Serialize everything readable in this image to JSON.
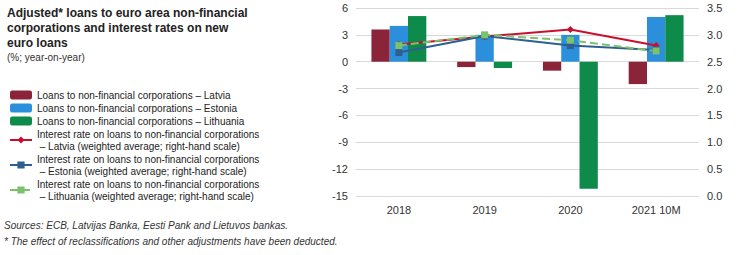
{
  "chart_data": {
    "type": "bar",
    "title": "Adjusted* loans to euro area non-financial corporations and interest rates on new euro loans",
    "subtitle": "(%; year-on-year)",
    "notes": [
      "Sources: ECB, Latvijas Banka, Eesti Pank and Lietuvos bankas.",
      "* The effect of reclassifications and other adjustments have been deducted."
    ],
    "categories": [
      "2018",
      "2019",
      "2020",
      "2021 10M"
    ],
    "series": [
      {
        "name": "Loans to non-financial corporations – Latvia",
        "type": "bar",
        "color": "#8c2439",
        "values": [
          3.6,
          -0.6,
          -1.0,
          -2.5
        ]
      },
      {
        "name": "Loans to non-financial corporations – Estonia",
        "type": "bar",
        "color": "#2b8fdb",
        "values": [
          4.0,
          3.0,
          3.0,
          5.0
        ]
      },
      {
        "name": "Loans to non-financial corporations – Lithuania",
        "type": "bar",
        "color": "#0e8a4b",
        "values": [
          5.1,
          -0.7,
          -14.2,
          5.2
        ]
      },
      {
        "name": "Interest rate on loans to non-financial corporations – Latvia (weighted average; right-hand scale)",
        "type": "line",
        "axis": "y2",
        "color": "#c8102e",
        "marker": "diamond",
        "line_style": "solid",
        "values": [
          2.82,
          2.97,
          3.1,
          2.8
        ]
      },
      {
        "name": "Interest rate on loans to non-financial corporations – Estonia (weighted average; right-hand scale)",
        "type": "line",
        "axis": "y2",
        "color": "#2f5f8f",
        "marker": "square",
        "line_style": "solid",
        "values": [
          2.67,
          2.98,
          2.8,
          2.72
        ]
      },
      {
        "name": "Interest rate on loans to non-financial corporations – Lithuania (weighted average; right-hand scale)",
        "type": "line",
        "axis": "y2",
        "color": "#7cc26c",
        "marker": "square",
        "line_style": "dashed",
        "values": [
          2.8,
          3.0,
          2.9,
          2.7
        ]
      }
    ],
    "ylim": [
      -15,
      6
    ],
    "yticks": [
      -15,
      -12,
      -9,
      -6,
      -3,
      0,
      3,
      6
    ],
    "y2lim": [
      0,
      3.5
    ],
    "y2ticks": [
      {
        "value": 0,
        "label": "0.0"
      },
      0.5,
      {
        "value": 1,
        "label": "1.0"
      },
      1.5,
      {
        "value": 2,
        "label": "2.0"
      },
      2.5,
      {
        "value": 3,
        "label": "3.0"
      },
      3.5
    ],
    "grid": true,
    "legend": "left"
  }
}
